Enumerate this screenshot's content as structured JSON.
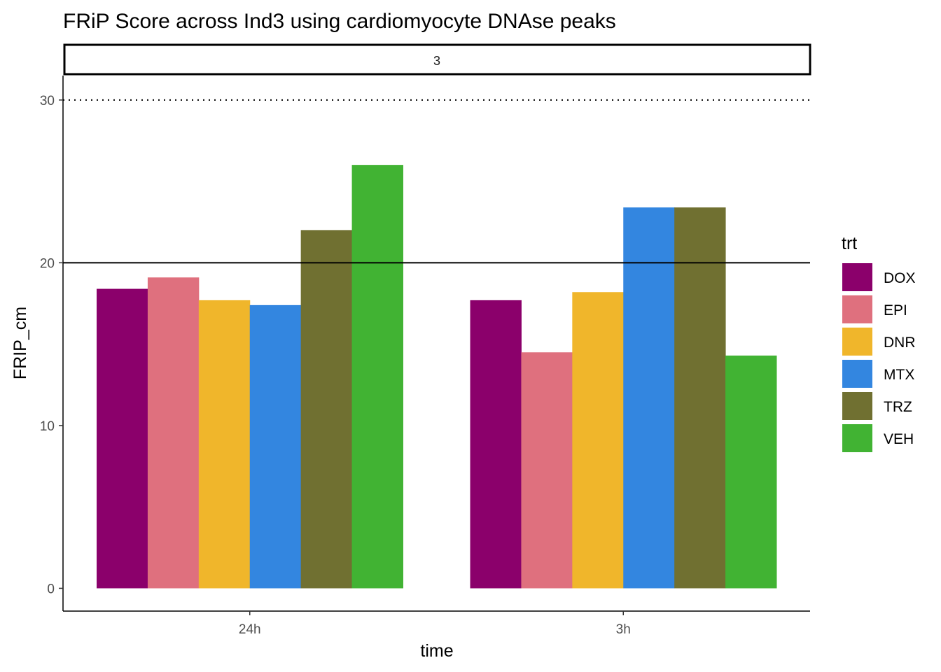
{
  "chart_data": {
    "type": "bar",
    "title": "FRiP Score across Ind3 using cardiomyocyte DNAse peaks",
    "facet_label": "3",
    "xlabel": "time",
    "ylabel": "FRIP_cm",
    "categories": [
      "24h",
      "3h"
    ],
    "ylim": [
      -1.4,
      31.5
    ],
    "y_ticks": [
      0,
      10,
      20,
      30
    ],
    "y_tick_labels": [
      "0",
      "10",
      "20",
      "30"
    ],
    "reference_lines": [
      {
        "value": 20,
        "style": "solid"
      },
      {
        "value": 30,
        "style": "dotted"
      }
    ],
    "legend_title": "trt",
    "legend_position": "right",
    "grid": false,
    "series": [
      {
        "name": "DOX",
        "color": "#8B006B",
        "values": [
          18.4,
          17.7
        ]
      },
      {
        "name": "EPI",
        "color": "#DF707E",
        "values": [
          19.1,
          14.5
        ]
      },
      {
        "name": "DNR",
        "color": "#F0B62B",
        "values": [
          17.7,
          18.2
        ]
      },
      {
        "name": "MTX",
        "color": "#3386E0",
        "values": [
          17.4,
          23.4
        ]
      },
      {
        "name": "TRZ",
        "color": "#707031",
        "values": [
          22.0,
          23.4
        ]
      },
      {
        "name": "VEH",
        "color": "#41B333",
        "values": [
          26.0,
          14.3
        ]
      }
    ]
  }
}
